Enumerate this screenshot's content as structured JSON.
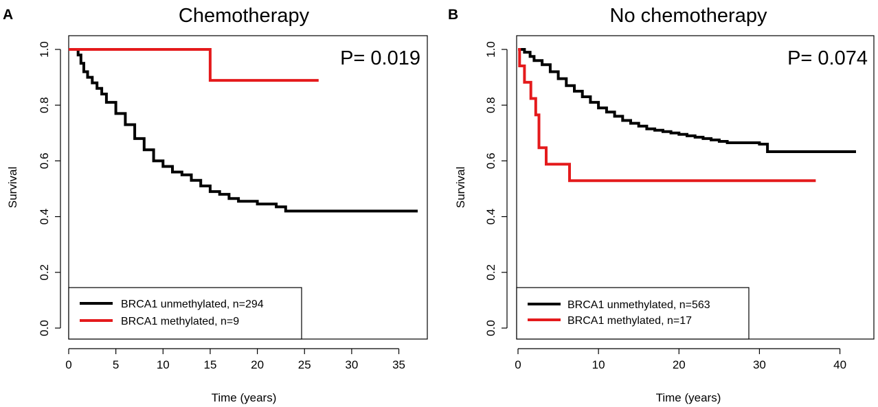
{
  "chart_data": [
    {
      "type": "line",
      "panel": "A",
      "title": "Chemotherapy",
      "xlabel": "Time (years)",
      "ylabel": "Survival",
      "xlim": [
        0,
        37
      ],
      "ylim": [
        0,
        1
      ],
      "xticks": [
        0,
        5,
        10,
        15,
        20,
        25,
        30,
        35
      ],
      "yticks": [
        0.0,
        0.2,
        0.4,
        0.6,
        0.8,
        1.0
      ],
      "ytick_labels": [
        "0.0",
        "0.2",
        "0.4",
        "0.6",
        "0.8",
        "1.0"
      ],
      "annotation": "P= 0.019",
      "legend_position": "bottom-left",
      "series": [
        {
          "name": "BRCA1 unmethylated, n=294",
          "color": "#000000",
          "x": [
            0,
            1.0,
            1.3,
            1.6,
            2.0,
            2.5,
            3.0,
            3.5,
            4.0,
            5.0,
            6.0,
            7.0,
            8.0,
            9.0,
            10.0,
            11.0,
            12.0,
            13.0,
            14.0,
            15.0,
            16.0,
            17.0,
            18.0,
            20.0,
            22.0,
            23.0,
            37.0
          ],
          "y": [
            1.0,
            0.98,
            0.95,
            0.92,
            0.9,
            0.88,
            0.86,
            0.84,
            0.81,
            0.77,
            0.73,
            0.68,
            0.64,
            0.6,
            0.58,
            0.56,
            0.55,
            0.53,
            0.51,
            0.49,
            0.48,
            0.465,
            0.455,
            0.445,
            0.435,
            0.42,
            0.42
          ]
        },
        {
          "name": "BRCA1 methylated, n=9",
          "color": "#e41a1c",
          "x": [
            0,
            15.0,
            26.5
          ],
          "y": [
            1.0,
            0.889,
            0.889
          ]
        }
      ]
    },
    {
      "type": "line",
      "panel": "B",
      "title": "No chemotherapy",
      "xlabel": "Time (years)",
      "ylabel": "Survival",
      "xlim": [
        0,
        42
      ],
      "ylim": [
        0,
        1
      ],
      "xticks": [
        0,
        10,
        20,
        30,
        40
      ],
      "yticks": [
        0.0,
        0.2,
        0.4,
        0.6,
        0.8,
        1.0
      ],
      "ytick_labels": [
        "0.0",
        "0.2",
        "0.4",
        "0.6",
        "0.8",
        "1.0"
      ],
      "annotation": "P= 0.074",
      "legend_position": "bottom-left",
      "series": [
        {
          "name": "BRCA1 unmethylated, n=563",
          "color": "#000000",
          "x": [
            0,
            0.8,
            1.5,
            2.0,
            3.0,
            4.0,
            5.0,
            6.0,
            7.0,
            8.0,
            9.0,
            10.0,
            11.0,
            12.0,
            13.0,
            14.0,
            15.0,
            16.0,
            17.0,
            18.0,
            19.0,
            20.0,
            21.0,
            22.0,
            23.0,
            24.0,
            25.0,
            26.0,
            28.0,
            30.0,
            31.0,
            42.0
          ],
          "y": [
            1.0,
            0.99,
            0.975,
            0.96,
            0.945,
            0.92,
            0.895,
            0.87,
            0.85,
            0.83,
            0.81,
            0.79,
            0.775,
            0.76,
            0.745,
            0.735,
            0.725,
            0.715,
            0.71,
            0.705,
            0.7,
            0.695,
            0.69,
            0.685,
            0.68,
            0.675,
            0.67,
            0.665,
            0.665,
            0.66,
            0.633,
            0.633
          ]
        },
        {
          "name": "BRCA1 methylated, n=17",
          "color": "#e41a1c",
          "x": [
            0,
            0.2,
            0.8,
            1.6,
            2.2,
            2.6,
            3.5,
            6.4,
            37.0
          ],
          "y": [
            1.0,
            0.941,
            0.882,
            0.824,
            0.765,
            0.647,
            0.588,
            0.529,
            0.529
          ]
        }
      ]
    }
  ]
}
